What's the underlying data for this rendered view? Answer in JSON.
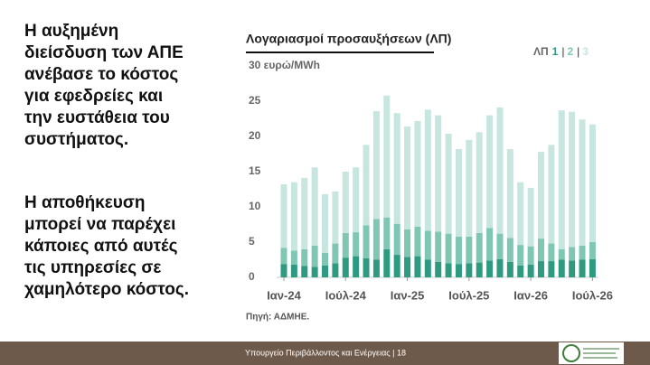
{
  "slide": {
    "text_blocks": [
      [
        "Η αυξημένη",
        "διείσδυση των ΑΠΕ",
        "ανέβασε το κόστος",
        "για εφεδρείες και",
        "την ευστάθεια του",
        "συστήματος."
      ],
      [
        "Η αποθήκευση",
        "μπορεί να παρέχει",
        "κάποιες από αυτές",
        "τις υπηρεσίες σε",
        "χαμηλότερο κόστος."
      ]
    ],
    "footer": "Υπουργείο Περιβάλλοντος και Ενέργειας | 18"
  },
  "chart_data": {
    "type": "bar",
    "stacked": true,
    "title": "Λογαριασμοί προσαυξήσεων (ΛΠ)",
    "legend_title": "ΛΠ",
    "legend_separator": "|",
    "source": "Πηγή: ΑΔΜΗΕ.",
    "categories": [
      "Ιαν-24",
      null,
      null,
      null,
      null,
      null,
      "Ιούλ-24",
      null,
      null,
      null,
      null,
      null,
      "Ιαν-25",
      null,
      null,
      null,
      null,
      null,
      "Ιούλ-25",
      null,
      null,
      null,
      null,
      null,
      "Ιαν-26",
      null,
      null,
      null,
      null,
      null,
      "Ιούλ-26"
    ],
    "series": [
      {
        "name": "1",
        "color": "#2e9a80",
        "values": [
          1.9,
          1.8,
          1.6,
          1.5,
          1.7,
          2.0,
          2.8,
          3.0,
          2.7,
          2.5,
          4.0,
          3.2,
          2.9,
          3.0,
          2.5,
          2.2,
          2.0,
          1.9,
          2.0,
          2.1,
          2.4,
          2.6,
          2.2,
          1.7,
          1.8,
          2.3,
          2.3,
          2.5,
          2.4,
          2.5,
          2.6
        ]
      },
      {
        "name": "2",
        "color": "#7fc6b3",
        "values": [
          2.3,
          2.0,
          2.4,
          3.0,
          1.8,
          2.8,
          3.5,
          3.4,
          4.7,
          5.8,
          4.5,
          4.4,
          3.9,
          4.2,
          4.1,
          4.3,
          4.2,
          3.9,
          3.8,
          4.2,
          4.6,
          3.6,
          3.4,
          2.9,
          2.6,
          3.2,
          2.5,
          1.5,
          1.9,
          2.0,
          2.4
        ]
      },
      {
        "name": "3",
        "color": "#c6e6df",
        "values": [
          9.0,
          9.7,
          10.1,
          11.1,
          8.3,
          7.4,
          8.7,
          9.2,
          11.4,
          15.3,
          17.3,
          15.7,
          14.6,
          15.0,
          17.2,
          16.5,
          14.2,
          12.4,
          13.7,
          14.3,
          16.0,
          17.9,
          12.6,
          8.9,
          8.3,
          12.3,
          14.0,
          19.7,
          19.2,
          17.9,
          16.7
        ]
      }
    ],
    "ylim": [
      0,
      30
    ],
    "yticks": [
      0,
      5,
      10,
      15,
      20,
      25,
      {
        "value": 30,
        "label": "30 ευρώ/MWh"
      }
    ],
    "grid": false
  }
}
